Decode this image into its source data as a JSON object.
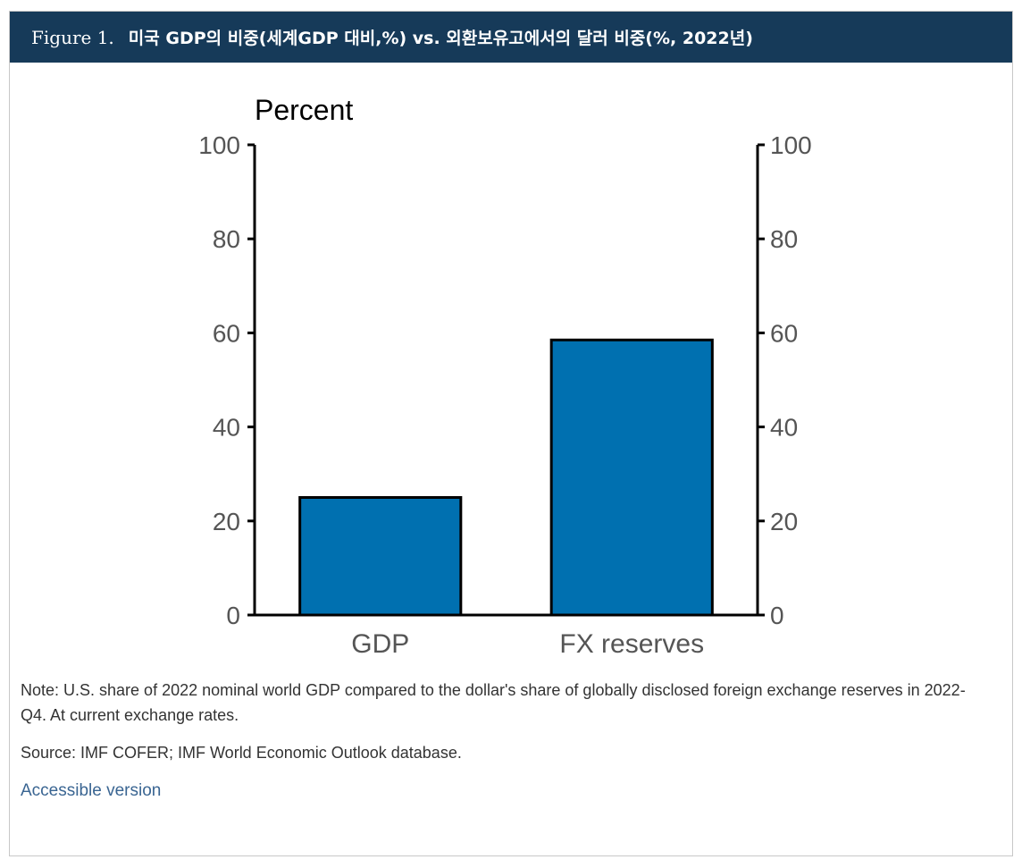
{
  "figure": {
    "label": "Figure 1.",
    "title": "미국 GDP의 비중(세계GDP 대비,%) vs. 외환보유고에서의 달러 비중(%, 2022년)"
  },
  "chart_data": {
    "type": "bar",
    "categories": [
      "GDP",
      "FX reserves"
    ],
    "values": [
      25,
      58.5
    ],
    "ylabel": "Percent",
    "ylim": [
      0,
      100
    ],
    "yticks": [
      0,
      20,
      40,
      60,
      80,
      100
    ],
    "secondary_axis": true,
    "grid": false,
    "bar_color": "#0070b0",
    "edge_color": "#000000"
  },
  "notes": {
    "note": "Note: U.S. share of 2022 nominal world GDP compared to the dollar's share of globally disclosed foreign exchange reserves in 2022-Q4. At current exchange rates.",
    "source": "Source: IMF COFER; IMF World Economic Outlook database.",
    "accessible_link": "Accessible version"
  }
}
